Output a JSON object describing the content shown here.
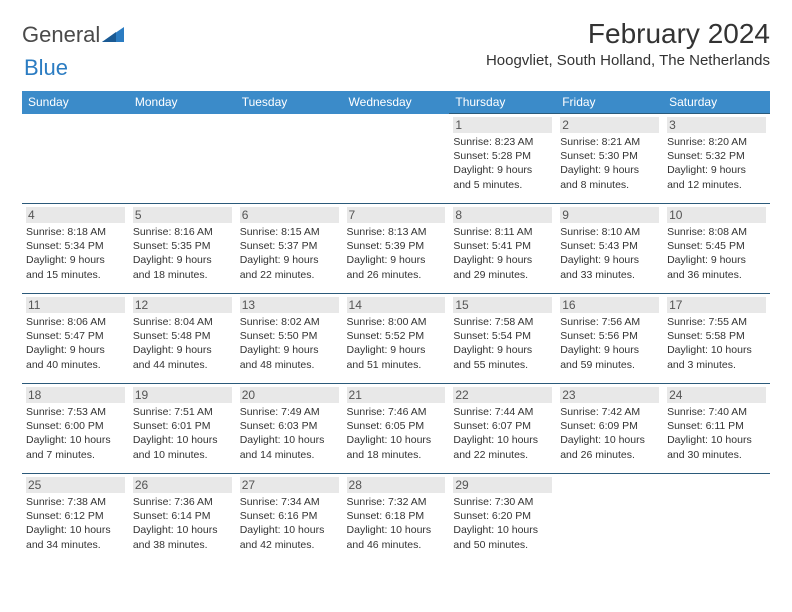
{
  "logo": {
    "part1": "General",
    "part2": "Blue"
  },
  "title": "February 2024",
  "location": "Hoogvliet, South Holland, The Netherlands",
  "colors": {
    "header_bg": "#3b8bc9",
    "header_text": "#ffffff",
    "border": "#2b5a7a",
    "daynum_bg": "#e8e8e8",
    "logo_blue": "#2b7cc2"
  },
  "weekdays": [
    "Sunday",
    "Monday",
    "Tuesday",
    "Wednesday",
    "Thursday",
    "Friday",
    "Saturday"
  ],
  "weeks": [
    [
      null,
      null,
      null,
      null,
      {
        "n": "1",
        "sr": "Sunrise: 8:23 AM",
        "ss": "Sunset: 5:28 PM",
        "d1": "Daylight: 9 hours",
        "d2": "and 5 minutes."
      },
      {
        "n": "2",
        "sr": "Sunrise: 8:21 AM",
        "ss": "Sunset: 5:30 PM",
        "d1": "Daylight: 9 hours",
        "d2": "and 8 minutes."
      },
      {
        "n": "3",
        "sr": "Sunrise: 8:20 AM",
        "ss": "Sunset: 5:32 PM",
        "d1": "Daylight: 9 hours",
        "d2": "and 12 minutes."
      }
    ],
    [
      {
        "n": "4",
        "sr": "Sunrise: 8:18 AM",
        "ss": "Sunset: 5:34 PM",
        "d1": "Daylight: 9 hours",
        "d2": "and 15 minutes."
      },
      {
        "n": "5",
        "sr": "Sunrise: 8:16 AM",
        "ss": "Sunset: 5:35 PM",
        "d1": "Daylight: 9 hours",
        "d2": "and 18 minutes."
      },
      {
        "n": "6",
        "sr": "Sunrise: 8:15 AM",
        "ss": "Sunset: 5:37 PM",
        "d1": "Daylight: 9 hours",
        "d2": "and 22 minutes."
      },
      {
        "n": "7",
        "sr": "Sunrise: 8:13 AM",
        "ss": "Sunset: 5:39 PM",
        "d1": "Daylight: 9 hours",
        "d2": "and 26 minutes."
      },
      {
        "n": "8",
        "sr": "Sunrise: 8:11 AM",
        "ss": "Sunset: 5:41 PM",
        "d1": "Daylight: 9 hours",
        "d2": "and 29 minutes."
      },
      {
        "n": "9",
        "sr": "Sunrise: 8:10 AM",
        "ss": "Sunset: 5:43 PM",
        "d1": "Daylight: 9 hours",
        "d2": "and 33 minutes."
      },
      {
        "n": "10",
        "sr": "Sunrise: 8:08 AM",
        "ss": "Sunset: 5:45 PM",
        "d1": "Daylight: 9 hours",
        "d2": "and 36 minutes."
      }
    ],
    [
      {
        "n": "11",
        "sr": "Sunrise: 8:06 AM",
        "ss": "Sunset: 5:47 PM",
        "d1": "Daylight: 9 hours",
        "d2": "and 40 minutes."
      },
      {
        "n": "12",
        "sr": "Sunrise: 8:04 AM",
        "ss": "Sunset: 5:48 PM",
        "d1": "Daylight: 9 hours",
        "d2": "and 44 minutes."
      },
      {
        "n": "13",
        "sr": "Sunrise: 8:02 AM",
        "ss": "Sunset: 5:50 PM",
        "d1": "Daylight: 9 hours",
        "d2": "and 48 minutes."
      },
      {
        "n": "14",
        "sr": "Sunrise: 8:00 AM",
        "ss": "Sunset: 5:52 PM",
        "d1": "Daylight: 9 hours",
        "d2": "and 51 minutes."
      },
      {
        "n": "15",
        "sr": "Sunrise: 7:58 AM",
        "ss": "Sunset: 5:54 PM",
        "d1": "Daylight: 9 hours",
        "d2": "and 55 minutes."
      },
      {
        "n": "16",
        "sr": "Sunrise: 7:56 AM",
        "ss": "Sunset: 5:56 PM",
        "d1": "Daylight: 9 hours",
        "d2": "and 59 minutes."
      },
      {
        "n": "17",
        "sr": "Sunrise: 7:55 AM",
        "ss": "Sunset: 5:58 PM",
        "d1": "Daylight: 10 hours",
        "d2": "and 3 minutes."
      }
    ],
    [
      {
        "n": "18",
        "sr": "Sunrise: 7:53 AM",
        "ss": "Sunset: 6:00 PM",
        "d1": "Daylight: 10 hours",
        "d2": "and 7 minutes."
      },
      {
        "n": "19",
        "sr": "Sunrise: 7:51 AM",
        "ss": "Sunset: 6:01 PM",
        "d1": "Daylight: 10 hours",
        "d2": "and 10 minutes."
      },
      {
        "n": "20",
        "sr": "Sunrise: 7:49 AM",
        "ss": "Sunset: 6:03 PM",
        "d1": "Daylight: 10 hours",
        "d2": "and 14 minutes."
      },
      {
        "n": "21",
        "sr": "Sunrise: 7:46 AM",
        "ss": "Sunset: 6:05 PM",
        "d1": "Daylight: 10 hours",
        "d2": "and 18 minutes."
      },
      {
        "n": "22",
        "sr": "Sunrise: 7:44 AM",
        "ss": "Sunset: 6:07 PM",
        "d1": "Daylight: 10 hours",
        "d2": "and 22 minutes."
      },
      {
        "n": "23",
        "sr": "Sunrise: 7:42 AM",
        "ss": "Sunset: 6:09 PM",
        "d1": "Daylight: 10 hours",
        "d2": "and 26 minutes."
      },
      {
        "n": "24",
        "sr": "Sunrise: 7:40 AM",
        "ss": "Sunset: 6:11 PM",
        "d1": "Daylight: 10 hours",
        "d2": "and 30 minutes."
      }
    ],
    [
      {
        "n": "25",
        "sr": "Sunrise: 7:38 AM",
        "ss": "Sunset: 6:12 PM",
        "d1": "Daylight: 10 hours",
        "d2": "and 34 minutes."
      },
      {
        "n": "26",
        "sr": "Sunrise: 7:36 AM",
        "ss": "Sunset: 6:14 PM",
        "d1": "Daylight: 10 hours",
        "d2": "and 38 minutes."
      },
      {
        "n": "27",
        "sr": "Sunrise: 7:34 AM",
        "ss": "Sunset: 6:16 PM",
        "d1": "Daylight: 10 hours",
        "d2": "and 42 minutes."
      },
      {
        "n": "28",
        "sr": "Sunrise: 7:32 AM",
        "ss": "Sunset: 6:18 PM",
        "d1": "Daylight: 10 hours",
        "d2": "and 46 minutes."
      },
      {
        "n": "29",
        "sr": "Sunrise: 7:30 AM",
        "ss": "Sunset: 6:20 PM",
        "d1": "Daylight: 10 hours",
        "d2": "and 50 minutes."
      },
      null,
      null
    ]
  ]
}
